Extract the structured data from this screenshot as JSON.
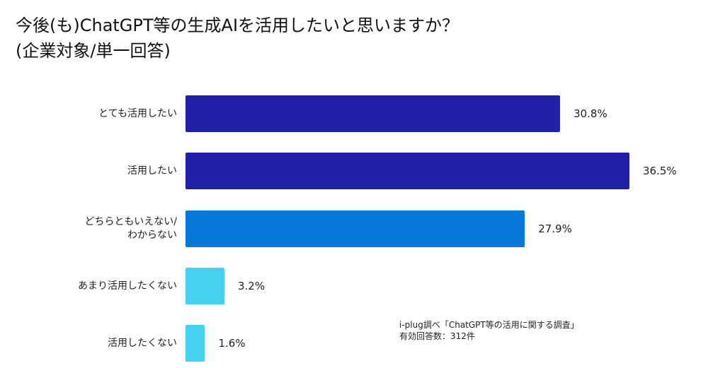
{
  "chart_data": {
    "type": "bar",
    "orientation": "horizontal",
    "title": "今後(も)ChatGPT等の生成AIを活用したいと思いますか？",
    "subtitle": "(企業対象/単一回答)",
    "categories": [
      "とても活用したい",
      "活用したい",
      "どちらともいえない/\nわからない",
      "あまり活用したくない",
      "活用したくない"
    ],
    "values": [
      30.8,
      36.5,
      27.9,
      3.2,
      1.6
    ],
    "value_labels": [
      "30.8%",
      "36.5%",
      "27.9%",
      "3.2%",
      "1.6%"
    ],
    "colors": [
      "#2121a8",
      "#2121a8",
      "#0777d8",
      "#45d0ef",
      "#45d0ef"
    ],
    "xlim": [
      0,
      36.5
    ],
    "grid": false,
    "source": "i-plug調べ「ChatGPT等の活用に関する調査」",
    "sample": "有効回答数：312件"
  }
}
